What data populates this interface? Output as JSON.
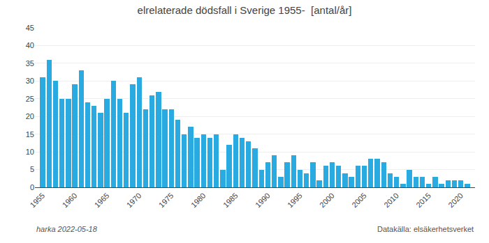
{
  "chart_data": {
    "type": "bar",
    "title": "elrelaterade dödsfall i Sverige 1955-  [antal/år]",
    "annotations": [
      "harka 2022-05-18",
      "Datakälla: elsäkerhetsverket"
    ],
    "x": [
      1955,
      1956,
      1957,
      1958,
      1959,
      1960,
      1961,
      1962,
      1963,
      1964,
      1965,
      1966,
      1967,
      1968,
      1969,
      1970,
      1971,
      1972,
      1973,
      1974,
      1975,
      1976,
      1977,
      1978,
      1979,
      1980,
      1981,
      1982,
      1983,
      1984,
      1985,
      1986,
      1987,
      1988,
      1989,
      1990,
      1991,
      1992,
      1993,
      1994,
      1995,
      1996,
      1997,
      1998,
      1999,
      2000,
      2001,
      2002,
      2003,
      2004,
      2005,
      2006,
      2007,
      2008,
      2009,
      2010,
      2011,
      2012,
      2013,
      2014,
      2015,
      2016,
      2017,
      2018,
      2019,
      2020,
      2021
    ],
    "values": [
      31,
      36,
      30,
      25,
      25,
      29,
      33,
      24,
      23,
      21,
      25,
      30,
      25,
      21,
      29,
      31,
      22,
      26,
      27,
      22,
      22,
      19,
      15,
      17,
      14,
      15,
      14,
      15,
      5,
      12,
      15,
      14,
      13,
      11,
      5,
      7,
      9,
      3,
      7,
      9,
      5,
      4,
      7,
      2,
      6,
      7,
      6,
      4,
      3,
      6,
      6,
      8,
      8,
      7,
      4,
      3,
      1,
      5,
      3,
      3,
      1,
      3,
      1,
      2,
      2,
      2,
      1
    ],
    "color": "#29ABE2",
    "xlim": [
      1953.8,
      2022.2
    ],
    "xticks": [
      1955,
      1960,
      1965,
      1970,
      1975,
      1980,
      1985,
      1990,
      1995,
      2000,
      2005,
      2010,
      2015,
      2020
    ],
    "ylim": [
      0,
      45
    ],
    "yticks": [
      0,
      5,
      10,
      15,
      20,
      25,
      30,
      35,
      40,
      45
    ],
    "grid": true
  }
}
